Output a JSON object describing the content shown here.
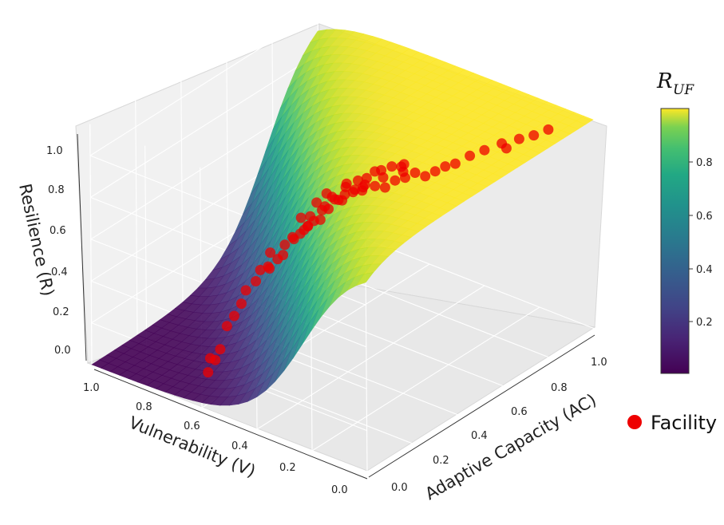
{
  "chart_data": {
    "type": "surface3d+scatter",
    "zlabel": "Resilience (R)",
    "xlabel": "Adaptive Capacity (AC)",
    "ylabel": "Vulnerability (V)",
    "zticks": [
      "0.0",
      "0.2",
      "0.4",
      "0.6",
      "0.8",
      "1.0"
    ],
    "xticks": [
      "0.0",
      "0.2",
      "0.4",
      "0.6",
      "0.8",
      "1.0"
    ],
    "yticks": [
      "0.0",
      "0.2",
      "0.4",
      "0.6",
      "0.8",
      "1.0"
    ],
    "xlim": [
      0,
      1
    ],
    "ylim": [
      0,
      1
    ],
    "zlim": [
      0,
      1
    ],
    "grid": true,
    "colorbar": {
      "title_main": "R",
      "title_sub": "UF",
      "colormap": "viridis",
      "ticks": [
        "0.2",
        "0.4",
        "0.6",
        "0.8"
      ],
      "range": [
        0,
        1
      ]
    },
    "legend": {
      "label": "Facility",
      "color": "#ee0000",
      "placement": "right"
    },
    "series": [
      {
        "name": "Facility",
        "points": [
          [
            0.1,
            0.66,
            0.07
          ],
          [
            0.11,
            0.66,
            0.13
          ],
          [
            0.12,
            0.65,
            0.12
          ],
          [
            0.13,
            0.64,
            0.17
          ],
          [
            0.16,
            0.64,
            0.26
          ],
          [
            0.18,
            0.63,
            0.3
          ],
          [
            0.2,
            0.62,
            0.35
          ],
          [
            0.22,
            0.62,
            0.4
          ],
          [
            0.24,
            0.6,
            0.44
          ],
          [
            0.26,
            0.6,
            0.48
          ],
          [
            0.27,
            0.58,
            0.5
          ],
          [
            0.28,
            0.58,
            0.56
          ],
          [
            0.3,
            0.55,
            0.55
          ],
          [
            0.32,
            0.56,
            0.58
          ],
          [
            0.33,
            0.54,
            0.62
          ],
          [
            0.34,
            0.52,
            0.64
          ],
          [
            0.3,
            0.57,
            0.52
          ],
          [
            0.35,
            0.5,
            0.68
          ],
          [
            0.36,
            0.5,
            0.72
          ],
          [
            0.38,
            0.48,
            0.7
          ],
          [
            0.4,
            0.48,
            0.75
          ],
          [
            0.42,
            0.46,
            0.78
          ],
          [
            0.44,
            0.44,
            0.8
          ],
          [
            0.46,
            0.42,
            0.82
          ],
          [
            0.48,
            0.4,
            0.84
          ],
          [
            0.5,
            0.38,
            0.83
          ],
          [
            0.52,
            0.36,
            0.82
          ],
          [
            0.54,
            0.34,
            0.85
          ],
          [
            0.56,
            0.32,
            0.86
          ],
          [
            0.58,
            0.3,
            0.88
          ],
          [
            0.6,
            0.28,
            0.86
          ],
          [
            0.62,
            0.26,
            0.88
          ],
          [
            0.64,
            0.24,
            0.9
          ],
          [
            0.66,
            0.22,
            0.91
          ],
          [
            0.7,
            0.2,
            0.93
          ],
          [
            0.74,
            0.18,
            0.94
          ],
          [
            0.78,
            0.15,
            0.96
          ],
          [
            0.82,
            0.12,
            0.97
          ],
          [
            0.86,
            0.1,
            0.97
          ],
          [
            0.9,
            0.08,
            0.98
          ],
          [
            0.44,
            0.5,
            0.7
          ],
          [
            0.46,
            0.48,
            0.74
          ],
          [
            0.5,
            0.46,
            0.76
          ],
          [
            0.52,
            0.44,
            0.78
          ],
          [
            0.4,
            0.52,
            0.66
          ],
          [
            0.38,
            0.54,
            0.62
          ],
          [
            0.36,
            0.56,
            0.58
          ],
          [
            0.48,
            0.52,
            0.72
          ],
          [
            0.42,
            0.42,
            0.86
          ],
          [
            0.45,
            0.4,
            0.88
          ],
          [
            0.5,
            0.38,
            0.9
          ],
          [
            0.55,
            0.36,
            0.9
          ],
          [
            0.58,
            0.34,
            0.9
          ],
          [
            0.44,
            0.36,
            0.92
          ],
          [
            0.48,
            0.34,
            0.94
          ],
          [
            0.4,
            0.4,
            0.9
          ],
          [
            0.56,
            0.4,
            0.82
          ],
          [
            0.6,
            0.36,
            0.84
          ],
          [
            0.34,
            0.46,
            0.82
          ],
          [
            0.32,
            0.5,
            0.74
          ],
          [
            0.74,
            0.1,
            0.99
          ],
          [
            0.46,
            0.54,
            0.66
          ],
          [
            0.5,
            0.5,
            0.7
          ],
          [
            0.3,
            0.6,
            0.46
          ],
          [
            0.42,
            0.56,
            0.6
          ],
          [
            0.54,
            0.46,
            0.74
          ],
          [
            0.36,
            0.44,
            0.86
          ],
          [
            0.52,
            0.3,
            0.95
          ]
        ]
      }
    ]
  }
}
